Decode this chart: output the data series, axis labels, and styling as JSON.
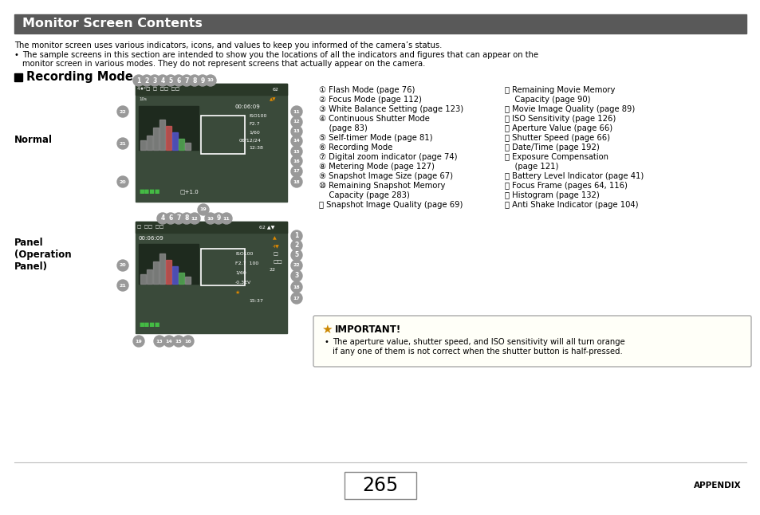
{
  "bg_color": "#ffffff",
  "header_bg": "#595959",
  "header_text": "Monitor Screen Contents",
  "header_text_color": "#ffffff",
  "header_fontsize": 11.5,
  "small_fontsize": 7.2,
  "title_line1": "The monitor screen uses various indicators, icons, and values to keep you informed of the camera’s status.",
  "bullet_line1": "The sample screens in this section are intended to show you the locations of all the indicators and figures that can appear on the",
  "bullet_line2": "monitor screen in various modes. They do not represent screens that actually appear on the camera.",
  "section_title": "Recording Mode",
  "label_normal": "Normal",
  "label_panel": "Panel\n(Operation\nPanel)",
  "col1_items": [
    "① Flash Mode (page 76)",
    "② Focus Mode (page 112)",
    "③ White Balance Setting (page 123)",
    "④ Continuous Shutter Mode",
    "    (page 83)",
    "⑤ Self-timer Mode (page 81)",
    "⑥ Recording Mode",
    "⑦ Digital zoom indicator (page 74)",
    "⑧ Metering Mode (page 127)",
    "⑨ Snapshot Image Size (page 67)",
    "⑩ Remaining Snapshot Memory",
    "    Capacity (page 283)",
    "⑪ Snapshot Image Quality (page 69)"
  ],
  "col2_items": [
    "⑫ Remaining Movie Memory",
    "    Capacity (page 90)",
    "⑬ Movie Image Quality (page 89)",
    "⑭ ISO Sensitivity (page 126)",
    "⑮ Aperture Value (page 66)",
    "⑯ Shutter Speed (page 66)",
    "⑰ Date/Time (page 192)",
    "⑱ Exposure Compensation",
    "    (page 121)",
    "⑲ Battery Level Indicator (page 41)",
    "⑳ Focus Frame (pages 64, 116)",
    "⑴ Histogram (page 132)",
    "⑵ Anti Shake Indicator (page 104)"
  ],
  "important_title": "IMPORTANT!",
  "important_line1": "The aperture value, shutter speed, and ISO sensitivity will all turn orange",
  "important_line2": "if any one of them is not correct when the shutter button is half-pressed.",
  "page_number": "265",
  "appendix_text": "APPENDIX"
}
